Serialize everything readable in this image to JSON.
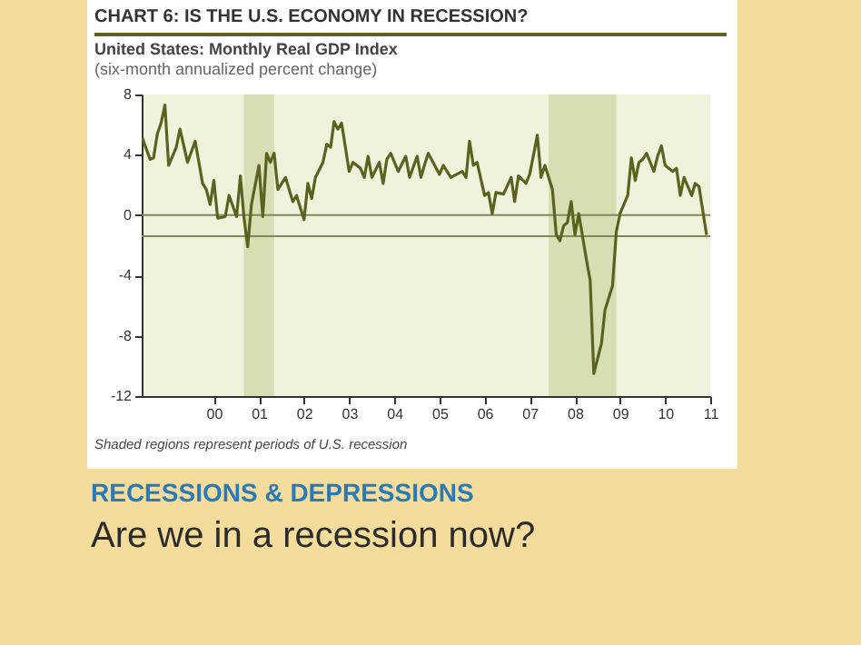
{
  "chart_data": {
    "type": "line",
    "title": "CHART 6: IS THE U.S. ECONOMY IN RECESSION?",
    "subtitle": "United States: Monthly Real GDP Index",
    "annotations": [
      "(six-month annualized percent change)",
      "Shaded regions represent periods of U.S. recession",
      "RECESSIONS & DEPRESSIONS",
      "Are we in a recession now?"
    ],
    "x": [
      "1998-12",
      "1999-02",
      "1999-03",
      "1999-04",
      "1999-05",
      "1999-06",
      "1999-07",
      "1999-09",
      "1999-10",
      "1999-12",
      "2000-02",
      "2000-04",
      "2000-05",
      "2000-06",
      "2000-07",
      "2000-08",
      "2000-10",
      "2000-11",
      "2001-01",
      "2001-02",
      "2001-03",
      "2001-04",
      "2001-05",
      "2001-07",
      "2001-08",
      "2001-09",
      "2001-10",
      "2001-11",
      "2001-12",
      "2002-02",
      "2002-04",
      "2002-05",
      "2002-07",
      "2002-08",
      "2002-09",
      "2002-10",
      "2002-12",
      "2003-01",
      "2003-02",
      "2003-03",
      "2003-04",
      "2003-05",
      "2003-07",
      "2003-08",
      "2003-10",
      "2003-11",
      "2003-12",
      "2004-01",
      "2004-03",
      "2004-04",
      "2004-05",
      "2004-06",
      "2004-08",
      "2004-10",
      "2004-11",
      "2005-01",
      "2005-02",
      "2005-03",
      "2005-04",
      "2005-07",
      "2005-08",
      "2005-10",
      "2006-01",
      "2006-02",
      "2006-03",
      "2006-04",
      "2006-05",
      "2006-07",
      "2006-08",
      "2006-09",
      "2006-10",
      "2006-12",
      "2007-02",
      "2007-03",
      "2007-04",
      "2007-06",
      "2007-07",
      "2007-09",
      "2007-10",
      "2007-11",
      "2008-01",
      "2008-02",
      "2008-03",
      "2008-04",
      "2008-05",
      "2008-06",
      "2008-07",
      "2008-08",
      "2008-10",
      "2008-11",
      "2008-12",
      "2009-02",
      "2009-03",
      "2009-05",
      "2009-06",
      "2009-07",
      "2009-09",
      "2009-10",
      "2009-11",
      "2009-12",
      "2010-01",
      "2010-02",
      "2010-04",
      "2010-05",
      "2010-06",
      "2010-07",
      "2010-09",
      "2010-10",
      "2010-11",
      "2010-12",
      "2011-02",
      "2011-03",
      "2011-04",
      "2011-06"
    ],
    "series": [
      {
        "color": "#5c6120",
        "values": [
          5.1,
          3.7,
          3.8,
          5.4,
          6.1,
          7.3,
          3.3,
          4.5,
          5.7,
          3.5,
          4.9,
          2.1,
          1.7,
          0.7,
          2.3,
          -0.2,
          -0.1,
          1.3,
          -0.1,
          2.6,
          -0.1,
          -2.1,
          0.7,
          3.3,
          -0.1,
          4.1,
          3.5,
          4.1,
          1.7,
          2.5,
          0.9,
          1.3,
          -0.3,
          2.1,
          1.1,
          2.5,
          3.5,
          4.7,
          4.5,
          6.2,
          5.7,
          6.1,
          2.9,
          3.5,
          3.1,
          2.5,
          3.9,
          2.5,
          3.5,
          2.1,
          3.7,
          4.1,
          2.9,
          3.9,
          2.5,
          3.9,
          2.5,
          3.3,
          4.1,
          2.7,
          3.3,
          2.5,
          2.9,
          2.5,
          4.9,
          3.3,
          3.5,
          1.3,
          1.5,
          0.1,
          1.5,
          1.4,
          2.5,
          0.9,
          2.6,
          2.1,
          2.7,
          5.3,
          2.5,
          3.3,
          1.7,
          -1.3,
          -1.7,
          -0.7,
          -0.5,
          0.9,
          -1.3,
          0.1,
          -2.9,
          -4.3,
          -10.5,
          -8.5,
          -6.3,
          -4.7,
          -1.1,
          0.1,
          1.3,
          3.8,
          2.3,
          3.5,
          3.7,
          4.1,
          2.9,
          3.9,
          4.6,
          3.3,
          2.9,
          3.1,
          1.3,
          2.5,
          1.3,
          2.1,
          1.9,
          -1.3
        ]
      }
    ],
    "xlim": [
      "1998-11-25",
      "2011-07-01"
    ],
    "xticks": [
      {
        "value": "2000-07-01",
        "label": "00"
      },
      {
        "value": "2001-07-01",
        "label": "01"
      },
      {
        "value": "2002-07-01",
        "label": "02"
      },
      {
        "value": "2003-07-01",
        "label": "03"
      },
      {
        "value": "2004-07-01",
        "label": "04"
      },
      {
        "value": "2005-07-01",
        "label": "05"
      },
      {
        "value": "2006-07-01",
        "label": "06"
      },
      {
        "value": "2007-07-01",
        "label": "07"
      },
      {
        "value": "2008-07-01",
        "label": "08"
      },
      {
        "value": "2009-07-01",
        "label": "09"
      },
      {
        "value": "2010-07-01",
        "label": "10"
      },
      {
        "value": "2011-07-01",
        "label": "11"
      }
    ],
    "ylim": [
      -12,
      8
    ],
    "yticks": [
      -12,
      -8,
      -4,
      0,
      4,
      8
    ],
    "bands": [
      {
        "axis": "x",
        "from": "2001-03",
        "to": "2001-11",
        "color": "#d9ddb4"
      },
      {
        "axis": "x",
        "from": "2007-12",
        "to": "2009-06",
        "color": "#d9ddb4"
      }
    ],
    "ref_lines": [
      {
        "axis": "y",
        "value": 0,
        "color": "#85875a"
      },
      {
        "axis": "y",
        "value": -1.4,
        "color": "#85875a"
      }
    ],
    "grid": false
  }
}
